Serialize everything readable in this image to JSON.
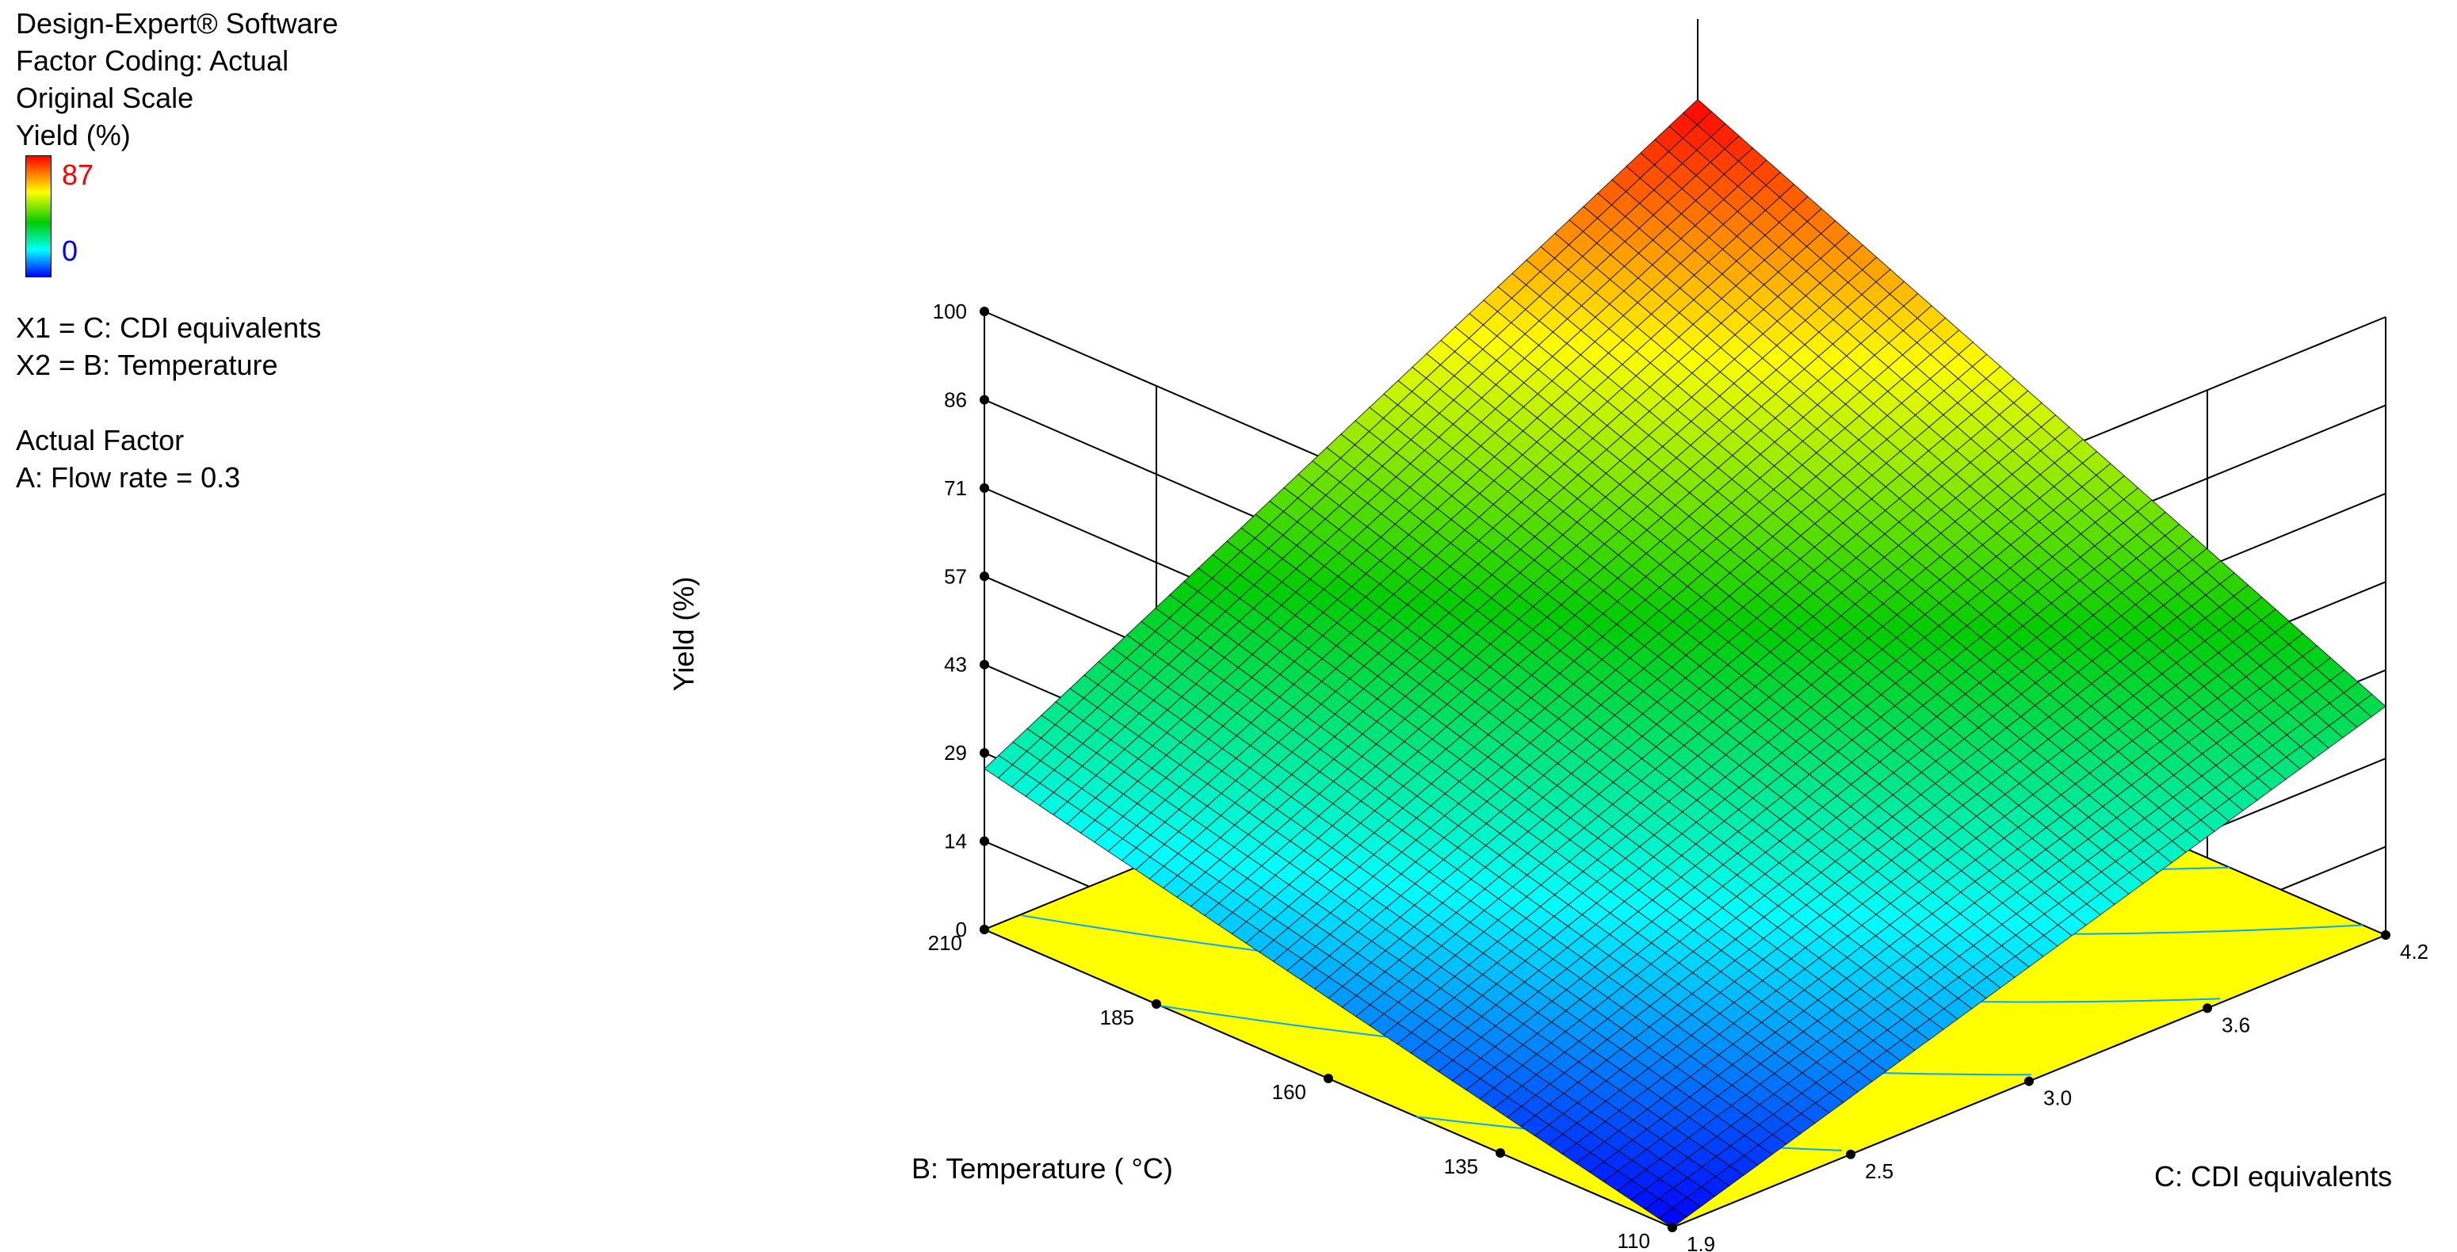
{
  "header": {
    "software": "Design-Expert® Software",
    "coding": "Factor Coding: Actual",
    "scale": "Original Scale",
    "response": "Yield (%)",
    "color_max": "87",
    "color_min": "0",
    "x1": "X1 = C: CDI equivalents",
    "x2": "X2 = B: Temperature",
    "actual_factor_title": "Actual Factor",
    "actual_factor_value": "A: Flow rate = 0.3"
  },
  "chart_data": {
    "type": "surface",
    "title": "",
    "xlabel": "C: CDI equivalents",
    "ylabel": "B: Temperature ( °C)",
    "zlabel": "Yield (%)",
    "x_ticks": [
      "1.9",
      "2.5",
      "3.0",
      "3.6",
      "4.2"
    ],
    "x_tick_values": [
      1.9,
      2.475,
      3.05,
      3.625,
      4.2
    ],
    "y_ticks": [
      "110",
      "135",
      "160",
      "185",
      "210"
    ],
    "y_tick_values": [
      110,
      135,
      160,
      185,
      210
    ],
    "z_ticks": [
      "0",
      "14",
      "29",
      "43",
      "57",
      "71",
      "86",
      "100"
    ],
    "z_tick_values": [
      0,
      14.29,
      28.57,
      42.86,
      57.14,
      71.43,
      85.71,
      100
    ],
    "xlim": [
      1.9,
      4.2
    ],
    "ylim": [
      110,
      210
    ],
    "zlim": [
      0,
      100
    ],
    "color_range": [
      0,
      87
    ],
    "surface_corners": [
      {
        "x": 1.9,
        "y": 110,
        "z": 0
      },
      {
        "x": 4.2,
        "y": 110,
        "z": 37
      },
      {
        "x": 1.9,
        "y": 210,
        "z": 26
      },
      {
        "x": 4.2,
        "y": 210,
        "z": 87
      }
    ],
    "grid_resolution": 50,
    "colormap": [
      "#0000ff",
      "#00ffff",
      "#00cc00",
      "#ffff00",
      "#ff0000"
    ],
    "floor_color": "#ffff00",
    "contour_color": "#00a8ff",
    "grid": true
  }
}
